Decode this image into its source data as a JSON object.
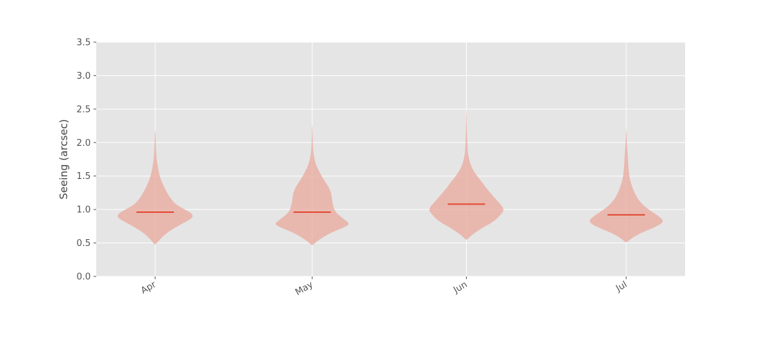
{
  "chart_data": {
    "type": "violin",
    "title": "",
    "xlabel": "",
    "ylabel": "Seeing (arcsec)",
    "ylim": [
      0,
      3.5
    ],
    "yticks": [
      0.0,
      0.5,
      1.0,
      1.5,
      2.0,
      2.5,
      3.0,
      3.5
    ],
    "ytick_labels": [
      "0.0",
      "0.5",
      "1.0",
      "1.5",
      "2.0",
      "2.5",
      "3.0",
      "3.5"
    ],
    "grid": true,
    "categories": [
      "Apr",
      "May",
      "Jun",
      "Jul"
    ],
    "median_color": "#e24a33",
    "body_color": "#e8a89c",
    "background_color": "#e5e5e5",
    "violins": [
      {
        "category": "Apr",
        "min": 0.48,
        "max": 2.18,
        "median": 0.96,
        "profile": [
          [
            0.48,
            0.02
          ],
          [
            0.55,
            0.12
          ],
          [
            0.65,
            0.3
          ],
          [
            0.75,
            0.58
          ],
          [
            0.85,
            0.92
          ],
          [
            0.9,
            1.0
          ],
          [
            0.95,
            0.94
          ],
          [
            1.0,
            0.78
          ],
          [
            1.05,
            0.62
          ],
          [
            1.1,
            0.5
          ],
          [
            1.2,
            0.36
          ],
          [
            1.3,
            0.27
          ],
          [
            1.4,
            0.18
          ],
          [
            1.5,
            0.12
          ],
          [
            1.6,
            0.08
          ],
          [
            1.7,
            0.05
          ],
          [
            1.8,
            0.03
          ],
          [
            2.0,
            0.015
          ],
          [
            2.18,
            0.005
          ]
        ]
      },
      {
        "category": "May",
        "min": 0.47,
        "max": 2.26,
        "median": 0.96,
        "profile": [
          [
            0.47,
            0.02
          ],
          [
            0.55,
            0.18
          ],
          [
            0.65,
            0.48
          ],
          [
            0.72,
            0.78
          ],
          [
            0.78,
            1.0
          ],
          [
            0.85,
            0.85
          ],
          [
            0.95,
            0.62
          ],
          [
            1.05,
            0.55
          ],
          [
            1.15,
            0.52
          ],
          [
            1.25,
            0.5
          ],
          [
            1.35,
            0.42
          ],
          [
            1.45,
            0.3
          ],
          [
            1.55,
            0.2
          ],
          [
            1.65,
            0.11
          ],
          [
            1.75,
            0.06
          ],
          [
            1.85,
            0.03
          ],
          [
            2.0,
            0.015
          ],
          [
            2.26,
            0.004
          ]
        ]
      },
      {
        "category": "Jun",
        "min": 0.55,
        "max": 2.5,
        "median": 1.08,
        "profile": [
          [
            0.55,
            0.02
          ],
          [
            0.62,
            0.14
          ],
          [
            0.72,
            0.4
          ],
          [
            0.82,
            0.72
          ],
          [
            0.92,
            0.9
          ],
          [
            1.0,
            1.0
          ],
          [
            1.1,
            0.86
          ],
          [
            1.2,
            0.7
          ],
          [
            1.3,
            0.55
          ],
          [
            1.4,
            0.42
          ],
          [
            1.5,
            0.28
          ],
          [
            1.6,
            0.16
          ],
          [
            1.7,
            0.09
          ],
          [
            1.8,
            0.05
          ],
          [
            1.9,
            0.03
          ],
          [
            2.1,
            0.015
          ],
          [
            2.3,
            0.008
          ],
          [
            2.5,
            0.003
          ]
        ]
      },
      {
        "category": "Jul",
        "min": 0.51,
        "max": 2.2,
        "median": 0.92,
        "profile": [
          [
            0.51,
            0.02
          ],
          [
            0.58,
            0.16
          ],
          [
            0.66,
            0.42
          ],
          [
            0.74,
            0.78
          ],
          [
            0.82,
            1.0
          ],
          [
            0.9,
            0.86
          ],
          [
            1.0,
            0.58
          ],
          [
            1.1,
            0.38
          ],
          [
            1.2,
            0.26
          ],
          [
            1.3,
            0.18
          ],
          [
            1.4,
            0.12
          ],
          [
            1.5,
            0.08
          ],
          [
            1.6,
            0.06
          ],
          [
            1.7,
            0.05
          ],
          [
            1.8,
            0.04
          ],
          [
            1.9,
            0.03
          ],
          [
            2.0,
            0.015
          ],
          [
            2.2,
            0.004
          ]
        ]
      }
    ]
  }
}
